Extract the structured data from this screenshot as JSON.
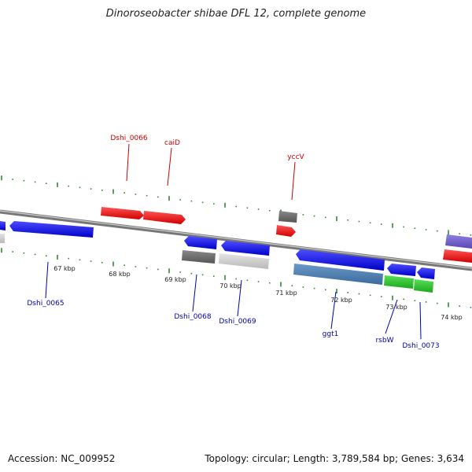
{
  "title": "Dinoroseobacter shibae DFL 12, complete genome",
  "footer": {
    "accession": "Accession: NC_009952",
    "summary": "Topology: circular; Length: 3,789,584 bp; Genes: 3,634"
  },
  "colors": {
    "backbone": "#888888",
    "tick": "#2e8b2e",
    "label_top": "#cc0000",
    "label_bottom": "#0000aa"
  },
  "ticks": [
    "67 kbp",
    "68 kbp",
    "69 kbp",
    "70 kbp",
    "71 kbp",
    "72 kbp",
    "73 kbp",
    "74 kbp"
  ],
  "gene_labels_top": [
    "Dshi_0066",
    "caiD",
    "yccV"
  ],
  "gene_labels_bottom": [
    "Dshi_0065",
    "Dshi_0068",
    "Dshi_0069",
    "ggt1",
    "rsbW",
    "Dshi_0073"
  ]
}
